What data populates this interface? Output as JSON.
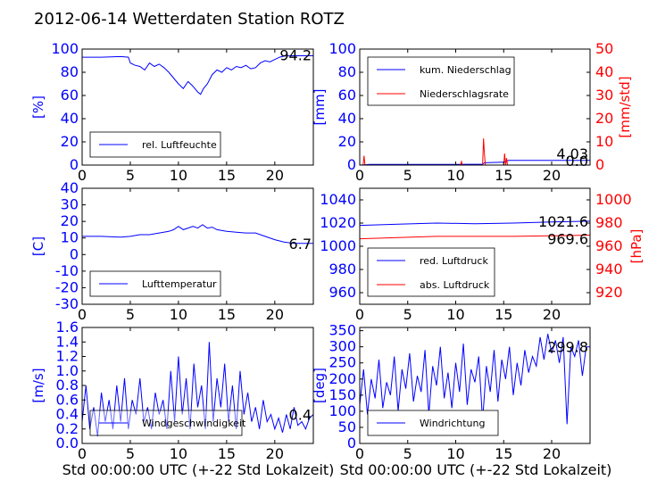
{
  "page_title": "2012-06-14 Wetterdaten Station ROTZ",
  "xlabel": "Std 00:00:00 UTC (+-22 Std Lokalzeit)",
  "colors": {
    "left_axis": "#0000ff",
    "right_axis": "#ff0000",
    "line_primary": "#0000ff",
    "line_secondary": "#ff0000"
  },
  "chart_data": [
    {
      "type": "line",
      "ylabel": "[%]",
      "xlim": [
        0,
        24
      ],
      "ylim": [
        0,
        100
      ],
      "xticks": [
        0,
        5,
        10,
        15,
        20
      ],
      "yticks": [
        0,
        20,
        40,
        60,
        80,
        100
      ],
      "legend": "top-left-bottom",
      "annotation": "94.2",
      "series": [
        {
          "name": "rel. Luftfeuchte",
          "color": "#0000ff",
          "x": [
            0,
            2,
            4,
            4.8,
            5,
            5.5,
            6,
            6.5,
            7,
            7.5,
            8,
            8.5,
            9,
            9.5,
            10,
            10.5,
            11,
            11.5,
            12,
            12.3,
            12.6,
            13,
            13.5,
            14,
            14.5,
            15,
            15.5,
            16,
            16.5,
            17,
            17.5,
            18,
            18.5,
            19,
            19.5,
            20,
            20.5,
            21,
            22,
            24
          ],
          "y": [
            93,
            93,
            93.5,
            93,
            88,
            86,
            85,
            82,
            88,
            85,
            87,
            84,
            80,
            75,
            70,
            66,
            72,
            68,
            63,
            61,
            66,
            70,
            78,
            82,
            80,
            84,
            82,
            85,
            84,
            86,
            83,
            84,
            88,
            90,
            89,
            91,
            93,
            94,
            94.2,
            94.2
          ]
        }
      ]
    },
    {
      "type": "line",
      "ylabel": "[mm]",
      "ylabel_right": "[mm/std]",
      "xlim": [
        0,
        24
      ],
      "ylim": [
        0,
        100
      ],
      "ylim_right": [
        0,
        50
      ],
      "xticks": [
        0,
        5,
        10,
        15,
        20
      ],
      "yticks": [
        0,
        20,
        40,
        60,
        80,
        100
      ],
      "yticks_right": [
        0,
        10,
        20,
        30,
        40,
        50
      ],
      "legend": "top-left",
      "annotations": [
        "4.03",
        "0.0"
      ],
      "series": [
        {
          "name": "kum. Niederschlag",
          "color": "#0000ff",
          "axis": "left",
          "x": [
            0,
            0.5,
            1,
            5,
            10,
            12.8,
            13,
            15,
            15.5,
            16,
            24
          ],
          "y": [
            0,
            0.2,
            0.5,
            0.5,
            0.6,
            0.8,
            2.0,
            2.5,
            4.03,
            4.03,
            4.03
          ]
        },
        {
          "name": "Niederschlagsrate",
          "color": "#ff0000",
          "axis": "right",
          "x": [
            0,
            0.35,
            0.45,
            0.55,
            0.7,
            1,
            10.5,
            10.6,
            10.7,
            12.8,
            12.9,
            13.0,
            13.1,
            15.0,
            15.1,
            15.2,
            15.3,
            15.4,
            15.5,
            24
          ],
          "y": [
            0,
            0,
            4,
            0,
            0,
            0,
            0,
            1.5,
            0,
            0,
            11.5,
            4,
            0,
            0,
            5,
            0,
            3,
            0,
            0,
            0
          ]
        }
      ]
    },
    {
      "type": "line",
      "ylabel": "[C]",
      "xlim": [
        0,
        24
      ],
      "ylim": [
        -30,
        40
      ],
      "xticks": [
        0,
        5,
        10,
        15,
        20
      ],
      "yticks": [
        -30,
        -20,
        -10,
        0,
        10,
        20,
        30,
        40
      ],
      "legend": "bottom-left",
      "annotation": "6.7",
      "series": [
        {
          "name": "Lufttemperatur",
          "color": "#0000ff",
          "x": [
            0,
            2,
            4,
            5,
            6,
            7,
            8,
            9,
            9.5,
            10,
            10.5,
            11,
            11.5,
            12,
            12.5,
            13,
            13.5,
            14,
            15,
            16,
            17,
            18,
            19,
            20,
            21,
            22,
            24
          ],
          "y": [
            11,
            11,
            10.5,
            11,
            12,
            12,
            13,
            14,
            15,
            17,
            15,
            16,
            17,
            16,
            18,
            16,
            16.5,
            15,
            14,
            13.5,
            13,
            13,
            11,
            9,
            7.5,
            6.8,
            6.7
          ]
        }
      ]
    },
    {
      "type": "line",
      "ylabel": "[hPa]",
      "xlim": [
        0,
        24
      ],
      "ylim": [
        950,
        1050
      ],
      "ylim_right": [
        910,
        1010
      ],
      "xticks": [
        0,
        5,
        10,
        15,
        20
      ],
      "yticks": [
        960,
        980,
        1000,
        1020,
        1040
      ],
      "yticks_right": [
        920,
        940,
        960,
        980,
        1000
      ],
      "legend": "bottom-left",
      "annotations": [
        "1021.6",
        "969.6"
      ],
      "series": [
        {
          "name": "red. Luftdruck",
          "color": "#0000ff",
          "axis": "left",
          "x": [
            0,
            4,
            8,
            12,
            16,
            20,
            24
          ],
          "y": [
            1018,
            1019,
            1020,
            1019.5,
            1020,
            1021,
            1021.6
          ]
        },
        {
          "name": "abs. Luftdruck",
          "color": "#ff0000",
          "axis": "right",
          "x": [
            0,
            4,
            8,
            12,
            16,
            20,
            24
          ],
          "y": [
            966.5,
            967.5,
            968.5,
            968.5,
            968.5,
            969,
            969.6
          ]
        }
      ]
    },
    {
      "type": "line",
      "ylabel": "[m/s]",
      "xlim": [
        0,
        24
      ],
      "ylim": [
        0,
        1.6
      ],
      "xticks": [
        0,
        5,
        10,
        15,
        20
      ],
      "yticks": [
        0.0,
        0.2,
        0.4,
        0.6,
        0.8,
        1.0,
        1.2,
        1.4,
        1.6
      ],
      "legend": "bottom-left",
      "annotation": "0.4",
      "series": [
        {
          "name": "Windgeschwindigkeit",
          "color": "#0000ff",
          "x": [
            0,
            0.4,
            0.8,
            1.2,
            1.6,
            2,
            2.4,
            2.8,
            3.2,
            3.6,
            4,
            4.4,
            4.8,
            5.2,
            5.6,
            6,
            6.4,
            6.8,
            7.2,
            7.6,
            8,
            8.4,
            8.8,
            9.2,
            9.6,
            10,
            10.4,
            10.8,
            11.2,
            11.6,
            12,
            12.4,
            12.8,
            13.2,
            13.6,
            14,
            14.4,
            14.8,
            15.2,
            15.6,
            16,
            16.4,
            16.8,
            17.2,
            17.6,
            18,
            18.4,
            18.8,
            19.2,
            19.6,
            20,
            20.4,
            20.8,
            21.2,
            21.6,
            22,
            22.4,
            22.8,
            23.2,
            23.6,
            24
          ],
          "y": [
            0.3,
            0.8,
            0.2,
            0.5,
            0.1,
            0.7,
            0.3,
            0.6,
            0.2,
            0.8,
            0.3,
            0.9,
            0.2,
            0.6,
            0.4,
            0.9,
            0.3,
            0.5,
            0.2,
            0.7,
            0.4,
            0.6,
            0.2,
            1.0,
            0.3,
            1.2,
            0.4,
            0.9,
            0.2,
            1.1,
            0.5,
            0.8,
            0.2,
            1.4,
            0.3,
            0.9,
            0.5,
            1.1,
            0.3,
            0.8,
            0.2,
            1.0,
            0.4,
            0.7,
            0.3,
            0.5,
            0.2,
            0.6,
            0.3,
            0.4,
            0.2,
            0.35,
            0.15,
            0.4,
            0.2,
            0.5,
            0.25,
            0.3,
            0.2,
            0.35,
            0.4
          ]
        }
      ]
    },
    {
      "type": "line",
      "ylabel": "[deg]",
      "xlim": [
        0,
        24
      ],
      "ylim": [
        0,
        360
      ],
      "xticks": [
        0,
        5,
        10,
        15,
        20
      ],
      "yticks": [
        0,
        50,
        100,
        150,
        200,
        250,
        300,
        350
      ],
      "legend": "bottom-left",
      "annotation": "299.8",
      "series": [
        {
          "name": "Windrichtung",
          "color": "#0000ff",
          "x": [
            0,
            0.4,
            0.8,
            1.2,
            1.6,
            2,
            2.4,
            2.8,
            3.2,
            3.6,
            4,
            4.4,
            4.8,
            5.2,
            5.6,
            6,
            6.4,
            6.8,
            7.2,
            7.6,
            8,
            8.4,
            8.8,
            9.2,
            9.6,
            10,
            10.4,
            10.8,
            11.2,
            11.6,
            12,
            12.4,
            12.8,
            13.2,
            13.6,
            14,
            14.4,
            14.8,
            15.2,
            15.6,
            16,
            16.4,
            16.8,
            17.2,
            17.6,
            18,
            18.4,
            18.8,
            19.2,
            19.6,
            20,
            20.4,
            20.8,
            21.2,
            21.6,
            22,
            22.4,
            22.8,
            23.2,
            23.6,
            24
          ],
          "y": [
            120,
            230,
            90,
            200,
            140,
            260,
            110,
            190,
            150,
            270,
            100,
            230,
            170,
            280,
            130,
            210,
            160,
            290,
            90,
            240,
            180,
            300,
            140,
            220,
            110,
            250,
            160,
            310,
            120,
            230,
            190,
            270,
            70,
            240,
            160,
            290,
            130,
            260,
            200,
            300,
            150,
            250,
            180,
            290,
            220,
            270,
            240,
            330,
            260,
            340,
            280,
            320,
            250,
            330,
            60,
            300,
            270,
            320,
            210,
            300,
            299.8
          ]
        }
      ]
    }
  ]
}
